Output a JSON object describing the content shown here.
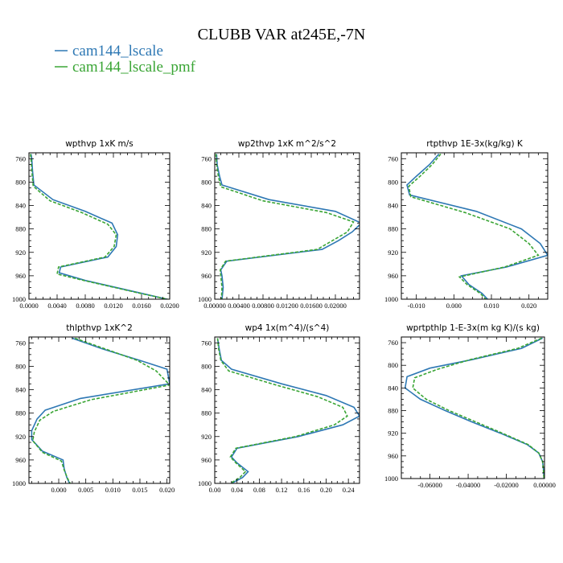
{
  "figure": {
    "title": "CLUBB VAR at245E,-7N",
    "legend": [
      {
        "name": "cam144_lscale",
        "color": "#2e78b4",
        "dash": ""
      },
      {
        "name": "cam144_lscale_pmf",
        "color": "#3aa535",
        "dash": "4,2"
      }
    ]
  },
  "chart_data": [
    {
      "type": "line",
      "title": "wpthvp  1xK m/s",
      "xlim": [
        0.0,
        0.02
      ],
      "ylim": [
        1000,
        750
      ],
      "xticks": [
        0.0,
        0.004,
        0.008,
        0.012,
        0.016,
        0.02
      ],
      "xticklabels": [
        "0.0000",
        "0.0040",
        "0.0080",
        "0.0120",
        "0.0160",
        "0.0200"
      ],
      "yticks": [
        760,
        800,
        840,
        880,
        920,
        960,
        1000
      ],
      "series": [
        {
          "name": "cam144_lscale",
          "y": [
            752,
            760,
            780,
            805,
            830,
            850,
            870,
            890,
            910,
            928,
            945,
            955,
            968,
            990,
            1000
          ],
          "x": [
            0.0003,
            0.0004,
            0.0005,
            0.0007,
            0.0034,
            0.008,
            0.0118,
            0.0126,
            0.0124,
            0.0112,
            0.0045,
            0.0043,
            0.008,
            0.016,
            0.0196
          ]
        },
        {
          "name": "cam144_lscale_pmf",
          "y": [
            752,
            760,
            780,
            807,
            832,
            852,
            872,
            890,
            910,
            928,
            945,
            957,
            968,
            990,
            1000
          ],
          "x": [
            0.0002,
            0.0003,
            0.0004,
            0.0006,
            0.003,
            0.0075,
            0.0112,
            0.0124,
            0.0121,
            0.0108,
            0.0042,
            0.004,
            0.0078,
            0.0158,
            0.0197
          ]
        }
      ]
    },
    {
      "type": "line",
      "title": "wp2thvp  1xK m^2/s^2",
      "xlim": [
        0.0,
        0.024
      ],
      "ylim": [
        1000,
        750
      ],
      "xticks": [
        0.0,
        0.004,
        0.008,
        0.012,
        0.016,
        0.02
      ],
      "xticklabels": [
        "0.00000",
        "0.00400",
        "0.00800",
        "0.01200",
        "0.01600",
        "0.02000"
      ],
      "yticks": [
        760,
        800,
        840,
        880,
        920,
        960,
        1000
      ],
      "series": [
        {
          "name": "cam144_lscale",
          "y": [
            752,
            770,
            790,
            805,
            830,
            850,
            870,
            885,
            900,
            915,
            935,
            950,
            960,
            980,
            1000
          ],
          "x": [
            0.0003,
            0.0004,
            0.0008,
            0.0012,
            0.009,
            0.02,
            0.0243,
            0.0228,
            0.0205,
            0.0178,
            0.002,
            0.001,
            0.0012,
            0.0014,
            0.0012
          ]
        },
        {
          "name": "cam144_lscale_pmf",
          "y": [
            752,
            770,
            790,
            808,
            832,
            852,
            868,
            885,
            900,
            915,
            935,
            950,
            960,
            980,
            1000
          ],
          "x": [
            0.0002,
            0.0003,
            0.0006,
            0.001,
            0.008,
            0.0185,
            0.023,
            0.022,
            0.0195,
            0.017,
            0.0018,
            0.0009,
            0.001,
            0.0012,
            0.0011
          ]
        }
      ]
    },
    {
      "type": "line",
      "title": "rtpthvp  1E-3x(kg/kg) K",
      "xlim": [
        -0.014,
        0.025
      ],
      "ylim": [
        1000,
        750
      ],
      "xticks": [
        -0.01,
        0.0,
        0.01,
        0.02
      ],
      "xticklabels": [
        "-0.010",
        "0.000",
        "0.010",
        "0.020"
      ],
      "yticks": [
        760,
        800,
        840,
        880,
        920,
        960,
        1000
      ],
      "series": [
        {
          "name": "cam144_lscale",
          "y": [
            752,
            770,
            790,
            805,
            822,
            850,
            880,
            905,
            925,
            945,
            960,
            975,
            990,
            1000
          ],
          "x": [
            -0.004,
            -0.0065,
            -0.01,
            -0.0125,
            -0.0118,
            0.006,
            0.018,
            0.023,
            0.025,
            0.014,
            0.002,
            0.004,
            0.0075,
            0.009
          ]
        },
        {
          "name": "cam144_lscale_pmf",
          "y": [
            752,
            770,
            790,
            807,
            825,
            852,
            880,
            905,
            925,
            945,
            962,
            975,
            990,
            1000
          ],
          "x": [
            -0.0035,
            -0.0058,
            -0.009,
            -0.012,
            -0.0115,
            0.003,
            0.015,
            0.02,
            0.0225,
            0.0135,
            0.0015,
            0.0035,
            0.007,
            0.0085
          ]
        }
      ]
    },
    {
      "type": "line",
      "title": "thlpthvp  1xK^2",
      "xlim": [
        -0.0055,
        0.0205
      ],
      "ylim": [
        1000,
        750
      ],
      "xticks": [
        0.0,
        0.005,
        0.01,
        0.015,
        0.02
      ],
      "xticklabels": [
        "0.000",
        "0.005",
        "0.010",
        "0.015",
        "0.020"
      ],
      "yticks": [
        760,
        800,
        840,
        880,
        920,
        960,
        1000
      ],
      "series": [
        {
          "name": "cam144_lscale",
          "y": [
            752,
            770,
            790,
            805,
            830,
            855,
            875,
            890,
            910,
            925,
            945,
            960,
            975,
            990,
            1000
          ],
          "x": [
            0.0025,
            0.008,
            0.015,
            0.02,
            0.0205,
            0.004,
            -0.0025,
            -0.004,
            -0.005,
            -0.005,
            -0.003,
            0.0008,
            0.001,
            0.0015,
            0.002
          ]
        },
        {
          "name": "cam144_lscale_pmf",
          "y": [
            752,
            770,
            790,
            808,
            832,
            857,
            877,
            892,
            912,
            927,
            947,
            962,
            977,
            991,
            1000
          ],
          "x": [
            0.003,
            0.0085,
            0.0145,
            0.018,
            0.0205,
            0.006,
            -0.001,
            -0.0035,
            -0.0045,
            -0.0048,
            -0.003,
            0.0005,
            0.001,
            0.0016,
            0.0021
          ]
        }
      ]
    },
    {
      "type": "line",
      "title": "wp4  1x(m^4)/(s^4)",
      "xlim": [
        0.0,
        0.26
      ],
      "ylim": [
        1000,
        750
      ],
      "xticks": [
        0.0,
        0.04,
        0.08,
        0.12,
        0.16,
        0.2,
        0.24
      ],
      "xticklabels": [
        "0.00",
        "0.04",
        "0.08",
        "0.12",
        "0.16",
        "0.20",
        "0.24"
      ],
      "yticks": [
        760,
        800,
        840,
        880,
        920,
        960,
        1000
      ],
      "series": [
        {
          "name": "cam144_lscale",
          "y": [
            752,
            770,
            790,
            805,
            830,
            850,
            870,
            885,
            900,
            920,
            940,
            955,
            965,
            980,
            990,
            1000
          ],
          "x": [
            0.005,
            0.008,
            0.012,
            0.03,
            0.12,
            0.2,
            0.25,
            0.26,
            0.23,
            0.15,
            0.04,
            0.03,
            0.04,
            0.06,
            0.05,
            0.03
          ]
        },
        {
          "name": "cam144_lscale_pmf",
          "y": [
            752,
            770,
            790,
            808,
            832,
            852,
            870,
            885,
            900,
            920,
            940,
            955,
            965,
            980,
            990,
            1000
          ],
          "x": [
            0.005,
            0.007,
            0.011,
            0.025,
            0.11,
            0.185,
            0.23,
            0.238,
            0.215,
            0.145,
            0.038,
            0.028,
            0.038,
            0.055,
            0.045,
            0.028
          ]
        }
      ]
    },
    {
      "type": "line",
      "title": "wprtpthlp  1-E-3x(m kg K)/(s kg)",
      "xlim": [
        -0.075,
        0.0
      ],
      "ylim": [
        1000,
        750
      ],
      "xticks": [
        -0.06,
        -0.04,
        -0.02,
        0.0
      ],
      "xticklabels": [
        "-0.06000",
        "-0.04000",
        "-0.02000",
        "0.00000"
      ],
      "yticks": [
        760,
        800,
        840,
        880,
        920,
        960,
        1000
      ],
      "series": [
        {
          "name": "cam144_lscale",
          "y": [
            752,
            770,
            790,
            805,
            820,
            840,
            860,
            880,
            900,
            920,
            940,
            955,
            970,
            985,
            1000
          ],
          "x": [
            -0.001,
            -0.012,
            -0.038,
            -0.06,
            -0.072,
            -0.073,
            -0.065,
            -0.052,
            -0.038,
            -0.023,
            -0.009,
            -0.003,
            -0.001,
            -0.0005,
            -0.0002
          ]
        },
        {
          "name": "cam144_lscale_pmf",
          "y": [
            752,
            770,
            790,
            807,
            822,
            840,
            860,
            880,
            900,
            920,
            940,
            955,
            970,
            985,
            1000
          ],
          "x": [
            -0.0015,
            -0.014,
            -0.039,
            -0.056,
            -0.068,
            -0.069,
            -0.062,
            -0.05,
            -0.036,
            -0.022,
            -0.0085,
            -0.003,
            -0.001,
            -0.0006,
            -0.0003
          ]
        }
      ]
    }
  ]
}
